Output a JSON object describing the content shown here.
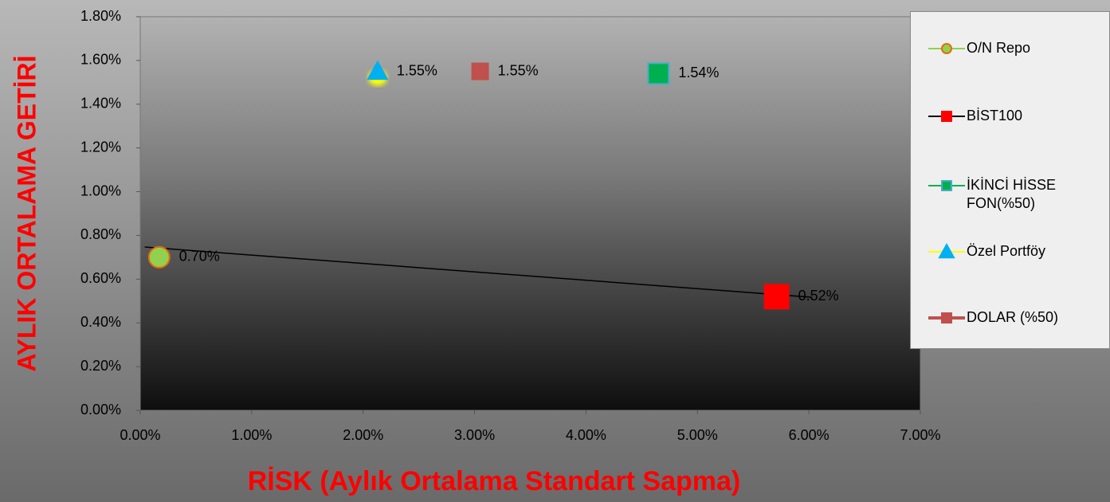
{
  "chart_data": {
    "type": "scatter",
    "xlabel": "RİSK (Aylık Ortalama Standart Sapma)",
    "ylabel": "AYLIK ORTALAMA GETİRİ",
    "xlim": [
      0,
      7
    ],
    "xticks": [
      {
        "value": 0,
        "label": "0.00%"
      },
      {
        "value": 1,
        "label": "1.00%"
      },
      {
        "value": 2,
        "label": "2.00%"
      },
      {
        "value": 3,
        "label": "3.00%"
      },
      {
        "value": 4,
        "label": "4.00%"
      },
      {
        "value": 5,
        "label": "5.00%"
      },
      {
        "value": 6,
        "label": "6.00%"
      },
      {
        "value": 7,
        "label": "7.00%"
      }
    ],
    "ylim": [
      0,
      1.8
    ],
    "yticks": [
      {
        "value": 0,
        "label": "0.00%"
      },
      {
        "value": 0.2,
        "label": "0.20%"
      },
      {
        "value": 0.4,
        "label": "0.40%"
      },
      {
        "value": 0.6,
        "label": "0.60%"
      },
      {
        "value": 0.8,
        "label": "0.80%"
      },
      {
        "value": 1.0,
        "label": "1.00%"
      },
      {
        "value": 1.2,
        "label": "1.20%"
      },
      {
        "value": 1.4,
        "label": "1.40%"
      },
      {
        "value": 1.6,
        "label": "1.60%"
      },
      {
        "value": 1.8,
        "label": "1.80%"
      }
    ],
    "legend": "right",
    "series": [
      {
        "name": "O/N Repo",
        "color": "#92d050",
        "edge": "#e46c0a",
        "line": "#92d050",
        "marker": "circle",
        "x": [
          0.17
        ],
        "values": [
          0.7
        ],
        "value_labels": [
          "0.70%"
        ]
      },
      {
        "name": "BİST100",
        "color": "#ff0000",
        "edge": "#ff0000",
        "line": "#000000",
        "marker": "square",
        "x": [
          5.71
        ],
        "values": [
          0.52
        ],
        "value_labels": [
          "0.52%"
        ]
      },
      {
        "name": "İKİNCİ HİSSE FON(%50)",
        "color": "#00b050",
        "edge": "#4bacc6",
        "line": "#00b050",
        "marker": "square",
        "x": [
          4.65
        ],
        "values": [
          1.54
        ],
        "value_labels": [
          "1.54%"
        ]
      },
      {
        "name": "Özel Portföy",
        "color": "#00b0f0",
        "edge": "#00b0f0",
        "line": "#ffff00",
        "marker": "triangle",
        "x": [
          2.13
        ],
        "values": [
          1.55
        ],
        "value_labels": [
          "1.55%"
        ]
      },
      {
        "name": "DOLAR (%50)",
        "color": "#c0504d",
        "edge": "#c0504d",
        "line": "#c0504d",
        "marker": "square",
        "x": [
          3.05
        ],
        "values": [
          1.55
        ],
        "value_labels": [
          "1.55%"
        ]
      }
    ],
    "trendline": {
      "color": "#000000",
      "x": [
        0.04,
        6.03
      ],
      "y": [
        0.747,
        0.517
      ]
    }
  }
}
